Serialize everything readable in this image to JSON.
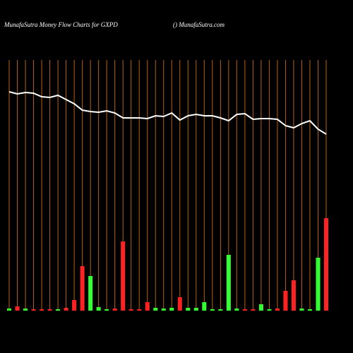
{
  "chart_data": {
    "type": "money-flow",
    "title": "MunafaSutra  Money Flow  Charts for GXPD",
    "subtitle": "() MunafaSutra.com",
    "categories": [
      null,
      null,
      null,
      null,
      null,
      null,
      null,
      null,
      null,
      null,
      null,
      null,
      null,
      null,
      null,
      null,
      null,
      null,
      null,
      null,
      null,
      null,
      null,
      null,
      null,
      null,
      null,
      null,
      null,
      null,
      null,
      null,
      null,
      null,
      null,
      null,
      null,
      null,
      null,
      null
    ],
    "ylim": [
      0,
      360
    ],
    "y2lim": [
      0,
      360
    ],
    "series": [
      {
        "type": "line",
        "color": "#ffffff",
        "values": [
          310,
          307,
          309,
          308,
          303,
          302,
          305,
          299,
          293,
          284,
          282,
          281,
          283,
          280,
          273,
          273,
          273,
          272,
          276,
          275,
          280,
          270,
          276,
          278,
          276,
          276,
          273,
          269,
          278,
          279,
          271,
          272,
          272,
          271,
          262,
          259,
          265,
          269,
          257,
          250
        ]
      },
      {
        "type": "bar",
        "axis": "y2",
        "values": [
          3,
          6,
          3,
          2,
          2,
          2,
          2,
          4,
          15,
          63,
          49,
          5,
          2,
          3,
          98,
          2,
          2,
          12,
          4,
          3,
          4,
          19,
          4,
          4,
          12,
          2,
          2,
          79,
          3,
          2,
          2,
          9,
          2,
          3,
          28,
          43,
          3,
          2,
          75,
          131
        ],
        "colors": [
          "#33ff33",
          "#ff2222",
          "#33ff33",
          "#ff2222",
          "#ff2222",
          "#ff2222",
          "#33ff33",
          "#ff2222",
          "#ff2222",
          "#ff2222",
          "#33ff33",
          "#33ff33",
          "#33ff33",
          "#ff2222",
          "#ff2222",
          "#ff2222",
          "#ff2222",
          "#ff2222",
          "#33ff33",
          "#33ff33",
          "#33ff33",
          "#ff2222",
          "#33ff33",
          "#33ff33",
          "#33ff33",
          "#33ff33",
          "#33ff33",
          "#33ff33",
          "#33ff33",
          "#ff2222",
          "#ff2222",
          "#33ff33",
          "#33ff33",
          "#ff2222",
          "#ff2222",
          "#ff2222",
          "#33ff33",
          "#33ff33",
          "#33ff33",
          "#ff2222"
        ]
      }
    ],
    "grid_color": "#b8620a"
  }
}
